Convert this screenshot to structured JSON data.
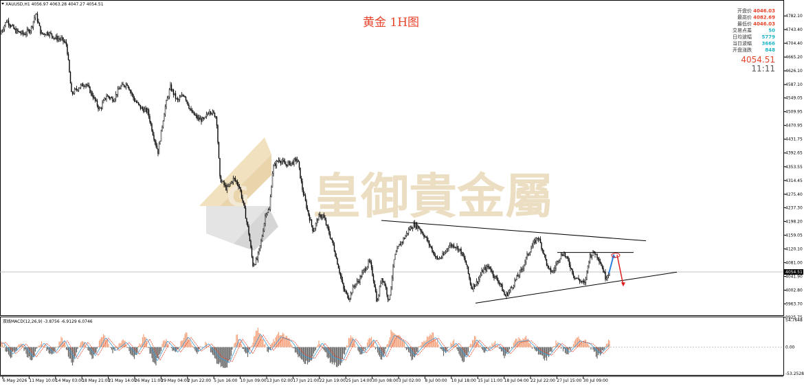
{
  "header": {
    "symbol_line": "XAUUSD,H1  4056.97 4063.28 4047.27 4054.51",
    "chart_title": "黄金 1H图"
  },
  "watermark": {
    "brand_text": "皇御貴金屬"
  },
  "info_panel": {
    "rows": [
      {
        "label": "开盘价",
        "value": "4046.03",
        "color": "#e8432a"
      },
      {
        "label": "最高价",
        "value": "4082.69",
        "color": "#e8432a"
      },
      {
        "label": "最低价",
        "value": "4046.03",
        "color": "#e8432a"
      },
      {
        "label": "交易点差",
        "value": "50",
        "color": "#1fb5c7"
      },
      {
        "label": "日均波幅",
        "value": "5779",
        "color": "#1fb5c7"
      },
      {
        "label": "当日波幅",
        "value": "3666",
        "color": "#1fb5c7"
      },
      {
        "label": "开盘涨跌",
        "value": "848",
        "color": "#1fb5c7"
      }
    ],
    "last_price": "4054.51",
    "time": "11:11"
  },
  "colors": {
    "candle": "#000000",
    "macd_pos": "#f4a27c",
    "macd_neg": "#666666",
    "macd_line": "#3c9ad8",
    "signal_line": "#e8432a",
    "forecast_up": "#2f7fe0",
    "forecast_down": "#e02020",
    "title": "#e8432a"
  },
  "chart_data": {
    "type": "candlestick",
    "title": "黄金 1H图",
    "price_axis_ticks": [
      "4782.10",
      "4743.40",
      "4704.40",
      "4665.20",
      "4626.10",
      "4587.10",
      "4549.05",
      "4509.95",
      "4470.95",
      "4431.75",
      "4392.65",
      "4353.55",
      "4314.45",
      "4275.40",
      "4237.30",
      "4198.20",
      "4159.05",
      "4120.10",
      "4081.00",
      "4041.90",
      "4002.80",
      "3963.70",
      "3925.75"
    ],
    "price_range": [
      3925.75,
      4800
    ],
    "current_price_label": "4054.51",
    "current_price": 4054.51,
    "time_axis_labels": [
      "6 May 2026",
      "11 May 10:00",
      "14 May 03:00",
      "18 May 21:00",
      "21 May 14:00",
      "26 May 11:00",
      "29 May 04:00",
      "2 Jun 22:00",
      "5 Jun 16:00",
      "10 Jun 09:00",
      "13 Jun 02:00",
      "17 Jun 21:00",
      "22 Jun 19:00",
      "25 Jun 14:00",
      "30 Jun 08:00",
      "3 Jul 02:00",
      "8 Jul 00:00",
      "10 Jul 18:00",
      "15 Jul 11:00",
      "18 Jul 04:00",
      "22 Jul 22:00",
      "27 Jul 15:00",
      "30 Jul 09:00"
    ],
    "price_path": [
      [
        0,
        4730
      ],
      [
        10,
        4770
      ],
      [
        22,
        4740
      ],
      [
        35,
        4730
      ],
      [
        45,
        4745
      ],
      [
        52,
        4790
      ],
      [
        60,
        4730
      ],
      [
        70,
        4735
      ],
      [
        80,
        4720
      ],
      [
        90,
        4715
      ],
      [
        97,
        4700
      ],
      [
        104,
        4560
      ],
      [
        115,
        4580
      ],
      [
        125,
        4590
      ],
      [
        135,
        4555
      ],
      [
        145,
        4515
      ],
      [
        155,
        4555
      ],
      [
        165,
        4545
      ],
      [
        175,
        4580
      ],
      [
        185,
        4590
      ],
      [
        195,
        4545
      ],
      [
        205,
        4520
      ],
      [
        215,
        4510
      ],
      [
        223,
        4445
      ],
      [
        230,
        4395
      ],
      [
        240,
        4520
      ],
      [
        248,
        4580
      ],
      [
        258,
        4540
      ],
      [
        268,
        4560
      ],
      [
        278,
        4510
      ],
      [
        288,
        4490
      ],
      [
        297,
        4485
      ],
      [
        305,
        4515
      ],
      [
        315,
        4495
      ],
      [
        320,
        4320
      ],
      [
        330,
        4290
      ],
      [
        340,
        4320
      ],
      [
        348,
        4300
      ],
      [
        355,
        4240
      ],
      [
        362,
        4165
      ],
      [
        368,
        4075
      ],
      [
        374,
        4090
      ],
      [
        380,
        4140
      ],
      [
        387,
        4225
      ],
      [
        392,
        4230
      ],
      [
        397,
        4350
      ],
      [
        406,
        4375
      ],
      [
        415,
        4360
      ],
      [
        425,
        4365
      ],
      [
        433,
        4375
      ],
      [
        440,
        4290
      ],
      [
        448,
        4225
      ],
      [
        456,
        4170
      ],
      [
        463,
        4210
      ],
      [
        470,
        4215
      ],
      [
        478,
        4170
      ],
      [
        485,
        4130
      ],
      [
        493,
        4065
      ],
      [
        500,
        4005
      ],
      [
        508,
        3980
      ],
      [
        515,
        4015
      ],
      [
        522,
        4030
      ],
      [
        530,
        4060
      ],
      [
        538,
        4085
      ],
      [
        544,
        4030
      ],
      [
        549,
        3965
      ],
      [
        555,
        4040
      ],
      [
        560,
        4020
      ],
      [
        566,
        3970
      ],
      [
        574,
        4095
      ],
      [
        581,
        4130
      ],
      [
        588,
        4150
      ],
      [
        595,
        4175
      ],
      [
        603,
        4190
      ],
      [
        610,
        4180
      ],
      [
        620,
        4150
      ],
      [
        628,
        4120
      ],
      [
        636,
        4090
      ],
      [
        645,
        4100
      ],
      [
        653,
        4130
      ],
      [
        662,
        4130
      ],
      [
        670,
        4115
      ],
      [
        678,
        4080
      ],
      [
        686,
        4010
      ],
      [
        694,
        4025
      ],
      [
        703,
        4060
      ],
      [
        712,
        4070
      ],
      [
        720,
        4040
      ],
      [
        727,
        4025
      ],
      [
        735,
        3985
      ],
      [
        743,
        4005
      ],
      [
        751,
        4035
      ],
      [
        759,
        4060
      ],
      [
        767,
        4100
      ],
      [
        775,
        4130
      ],
      [
        783,
        4155
      ],
      [
        791,
        4110
      ],
      [
        798,
        4060
      ],
      [
        805,
        4055
      ],
      [
        812,
        4090
      ],
      [
        820,
        4110
      ],
      [
        828,
        4080
      ],
      [
        836,
        4040
      ],
      [
        844,
        4030
      ],
      [
        851,
        4020
      ],
      [
        858,
        4100
      ],
      [
        865,
        4110
      ],
      [
        871,
        4095
      ],
      [
        876,
        4070
      ],
      [
        881,
        4040
      ],
      [
        887,
        4055
      ]
    ],
    "annotations": {
      "trendline_upper": [
        [
          555,
          4201
        ],
        [
          940,
          4143
        ]
      ],
      "trendline_lower": [
        [
          692,
          3966
        ],
        [
          985,
          4054
        ]
      ],
      "resistance_line": [
        [
          811,
          4110
        ],
        [
          922,
          4110
        ]
      ],
      "forecast_up_arrow": [
        [
          886,
          4050
        ],
        [
          893,
          4102
        ]
      ],
      "forecast_down_arrow": [
        [
          898,
          4103
        ],
        [
          907,
          4017
        ]
      ]
    },
    "macd": {
      "label": "双线MACD(12,26,9) -3.8756 -6.9129 6.0746",
      "ticks": [
        "54.7648",
        "0.00",
        "-53.2528"
      ],
      "range": [
        -53.2528,
        54.7648
      ],
      "histogram_points": [
        [
          0,
          15
        ],
        [
          15,
          -20
        ],
        [
          30,
          10
        ],
        [
          45,
          -30
        ],
        [
          60,
          12
        ],
        [
          75,
          -18
        ],
        [
          90,
          20
        ],
        [
          105,
          -35
        ],
        [
          120,
          15
        ],
        [
          135,
          -25
        ],
        [
          150,
          28
        ],
        [
          165,
          -10
        ],
        [
          180,
          14
        ],
        [
          195,
          -22
        ],
        [
          210,
          25
        ],
        [
          225,
          -40
        ],
        [
          240,
          18
        ],
        [
          255,
          -15
        ],
        [
          270,
          30
        ],
        [
          285,
          -12
        ],
        [
          300,
          10
        ],
        [
          315,
          -30
        ],
        [
          330,
          -45
        ],
        [
          345,
          25
        ],
        [
          360,
          -20
        ],
        [
          375,
          38
        ],
        [
          390,
          -10
        ],
        [
          405,
          30
        ],
        [
          420,
          18
        ],
        [
          435,
          -22
        ],
        [
          450,
          -35
        ],
        [
          465,
          12
        ],
        [
          480,
          -28
        ],
        [
          495,
          -40
        ],
        [
          510,
          25
        ],
        [
          525,
          -18
        ],
        [
          540,
          22
        ],
        [
          555,
          -30
        ],
        [
          570,
          35
        ],
        [
          585,
          15
        ],
        [
          600,
          -25
        ],
        [
          615,
          10
        ],
        [
          630,
          28
        ],
        [
          645,
          -15
        ],
        [
          660,
          12
        ],
        [
          675,
          -30
        ],
        [
          690,
          22
        ],
        [
          705,
          -12
        ],
        [
          720,
          10
        ],
        [
          735,
          -20
        ],
        [
          750,
          15
        ],
        [
          765,
          20
        ],
        [
          780,
          -10
        ],
        [
          795,
          -25
        ],
        [
          810,
          12
        ],
        [
          825,
          -15
        ],
        [
          840,
          18
        ],
        [
          855,
          10
        ],
        [
          870,
          -20
        ],
        [
          885,
          12
        ]
      ]
    }
  }
}
